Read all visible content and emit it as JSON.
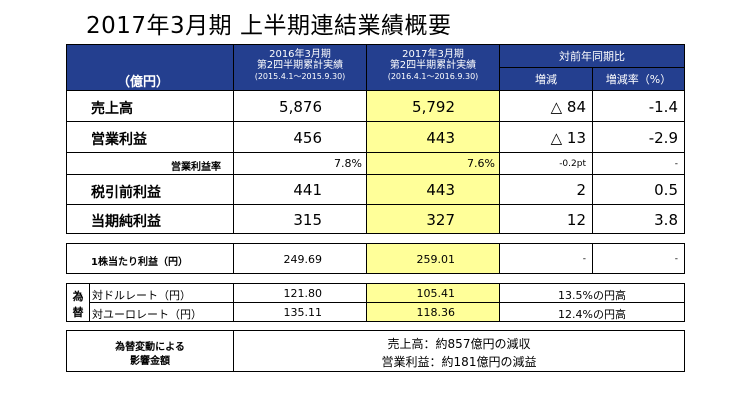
{
  "title": "2017年3月期 上半期連結業績概要",
  "header": {
    "unit": "（億円）",
    "prev_line1": "2016年3月期",
    "prev_line2": "第2四半期累計実績",
    "prev_line3": "(2015.4.1～2015.9.30)",
    "curr_line1": "2017年3月期",
    "curr_line2": "第2四半期累計実績",
    "curr_line3": "(2016.4.1～2016.9.30)",
    "yoy": "対前年同期比",
    "diff": "増減",
    "rate": "増減率（%）"
  },
  "rows": [
    {
      "label": "売上高",
      "prev": "5,876",
      "curr": "5,792",
      "diff": "△ 84",
      "rate": "-1.4"
    },
    {
      "label": "営業利益",
      "prev": "456",
      "curr": "443",
      "diff": "△ 13",
      "rate": "-2.9"
    },
    {
      "label": "営業利益率",
      "prev": "7.8%",
      "curr": "7.6%",
      "diff": "-0.2pt",
      "rate": "-"
    },
    {
      "label": "税引前利益",
      "prev": "441",
      "curr": "443",
      "diff": "2",
      "rate": "0.5"
    },
    {
      "label": "当期純利益",
      "prev": "315",
      "curr": "327",
      "diff": "12",
      "rate": "3.8"
    }
  ],
  "eps": {
    "label": "1株当たり利益（円）",
    "prev": "249.69",
    "curr": "259.01",
    "diff": "-",
    "rate": "-"
  },
  "fx": {
    "group_label_1": "為",
    "group_label_2": "替",
    "rows": [
      {
        "label": "対ドルレート（円）",
        "prev": "121.80",
        "curr": "105.41",
        "note": "13.5%の円高"
      },
      {
        "label": "対ユーロレート（円）",
        "prev": "135.11",
        "curr": "118.36",
        "note": "12.4%の円高"
      }
    ]
  },
  "impact": {
    "label_1": "為替変動による",
    "label_2": "影響金額",
    "line1": "売上高：約857億円の減収",
    "line2": "営業利益：約181億円の減益"
  },
  "colors": {
    "header_bg": "#243f8f",
    "highlight": "#ffff99"
  }
}
